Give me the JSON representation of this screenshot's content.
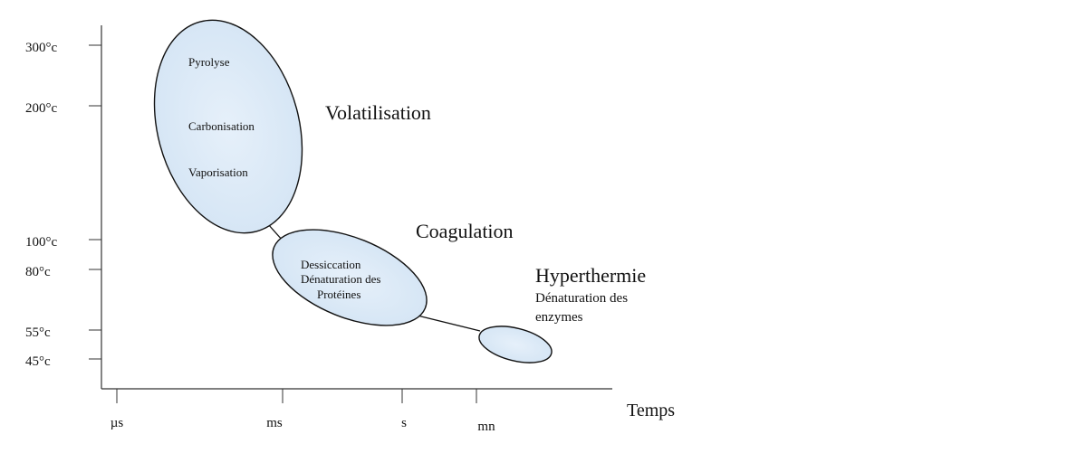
{
  "diagram": {
    "y_axis": {
      "ticks": [
        "300°c",
        "200°c",
        "100°c",
        "80°c",
        "55°c",
        "45°c"
      ]
    },
    "x_axis": {
      "title": "Temps",
      "ticks": [
        "µs",
        "ms",
        "s",
        "mn"
      ]
    },
    "zones": [
      {
        "title": "Volatilisation",
        "items": [
          "Pyrolyse",
          "Carbonisation",
          "Vaporisation"
        ]
      },
      {
        "title": "Coagulation",
        "items": [
          "Dessiccation",
          "Dénaturation des",
          "Protéines"
        ]
      },
      {
        "title": "Hyperthermie",
        "items": [
          "Dénaturation des",
          "enzymes"
        ]
      }
    ],
    "colors": {
      "ellipse_fill": "#ddeaf6",
      "ellipse_stroke": "#111111",
      "axis": "#333333"
    }
  }
}
